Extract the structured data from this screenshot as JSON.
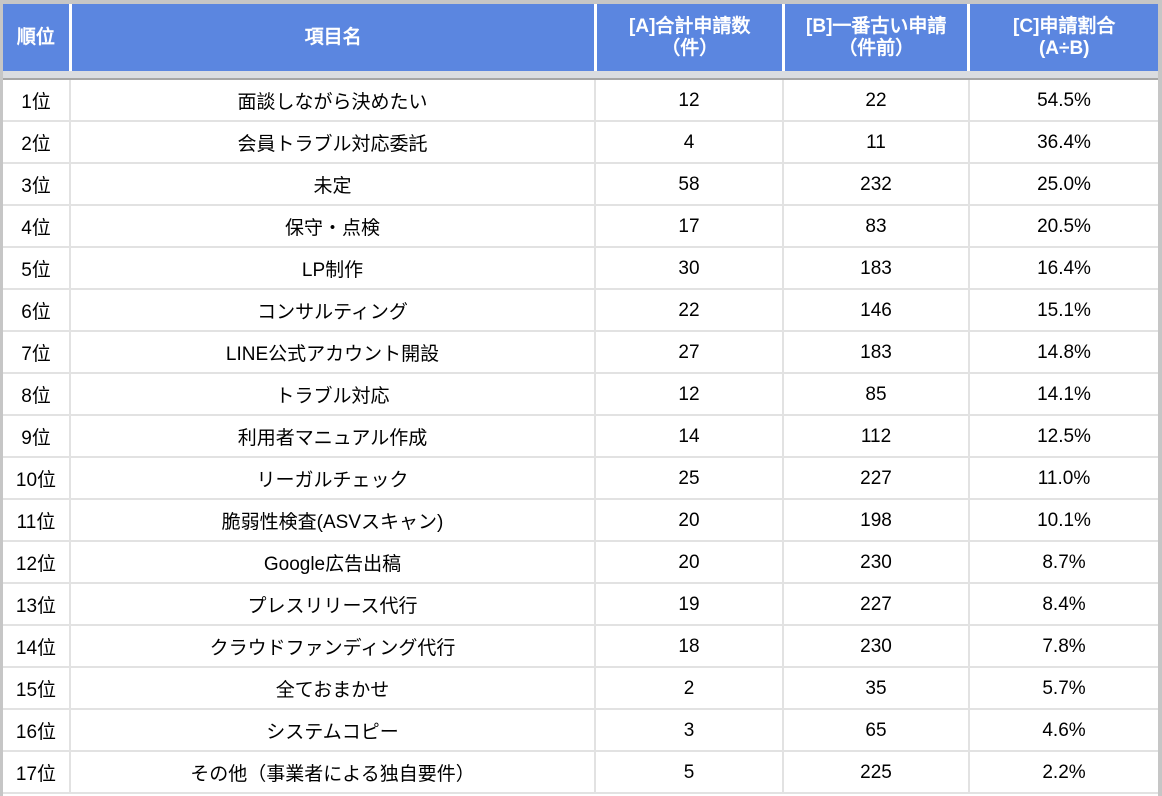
{
  "colors": {
    "header_bg": "#5b86e0",
    "header_text": "#ffffff",
    "grid_line": "#e2e2e2",
    "freeze_band": "#dadce0",
    "frame_gray": "#c6c6c6"
  },
  "header": {
    "rank": [
      "順位"
    ],
    "item": [
      "項目名"
    ],
    "a": [
      "[A]合計申請数",
      "（件）"
    ],
    "b": [
      "[B]一番古い申請",
      "（件前）"
    ],
    "c": [
      "[C]申請割合",
      "(A÷B)"
    ]
  },
  "rows": [
    {
      "rank": "1位",
      "item": "面談しながら決めたい",
      "a": "12",
      "b": "22",
      "c": "54.5%"
    },
    {
      "rank": "2位",
      "item": "会員トラブル対応委託",
      "a": "4",
      "b": "11",
      "c": "36.4%"
    },
    {
      "rank": "3位",
      "item": "未定",
      "a": "58",
      "b": "232",
      "c": "25.0%"
    },
    {
      "rank": "4位",
      "item": "保守・点検",
      "a": "17",
      "b": "83",
      "c": "20.5%"
    },
    {
      "rank": "5位",
      "item": "LP制作",
      "a": "30",
      "b": "183",
      "c": "16.4%"
    },
    {
      "rank": "6位",
      "item": "コンサルティング",
      "a": "22",
      "b": "146",
      "c": "15.1%"
    },
    {
      "rank": "7位",
      "item": "LINE公式アカウント開設",
      "a": "27",
      "b": "183",
      "c": "14.8%"
    },
    {
      "rank": "8位",
      "item": "トラブル対応",
      "a": "12",
      "b": "85",
      "c": "14.1%"
    },
    {
      "rank": "9位",
      "item": "利用者マニュアル作成",
      "a": "14",
      "b": "112",
      "c": "12.5%"
    },
    {
      "rank": "10位",
      "item": "リーガルチェック",
      "a": "25",
      "b": "227",
      "c": "11.0%"
    },
    {
      "rank": "11位",
      "item": "脆弱性検査(ASVスキャン)",
      "a": "20",
      "b": "198",
      "c": "10.1%"
    },
    {
      "rank": "12位",
      "item": "Google広告出稿",
      "a": "20",
      "b": "230",
      "c": "8.7%"
    },
    {
      "rank": "13位",
      "item": "プレスリリース代行",
      "a": "19",
      "b": "227",
      "c": "8.4%"
    },
    {
      "rank": "14位",
      "item": "クラウドファンディング代行",
      "a": "18",
      "b": "230",
      "c": "7.8%"
    },
    {
      "rank": "15位",
      "item": "全ておまかせ",
      "a": "2",
      "b": "35",
      "c": "5.7%"
    },
    {
      "rank": "16位",
      "item": "システムコピー",
      "a": "3",
      "b": "65",
      "c": "4.6%"
    },
    {
      "rank": "17位",
      "item": "その他（事業者による独自要件）",
      "a": "5",
      "b": "225",
      "c": "2.2%"
    }
  ]
}
